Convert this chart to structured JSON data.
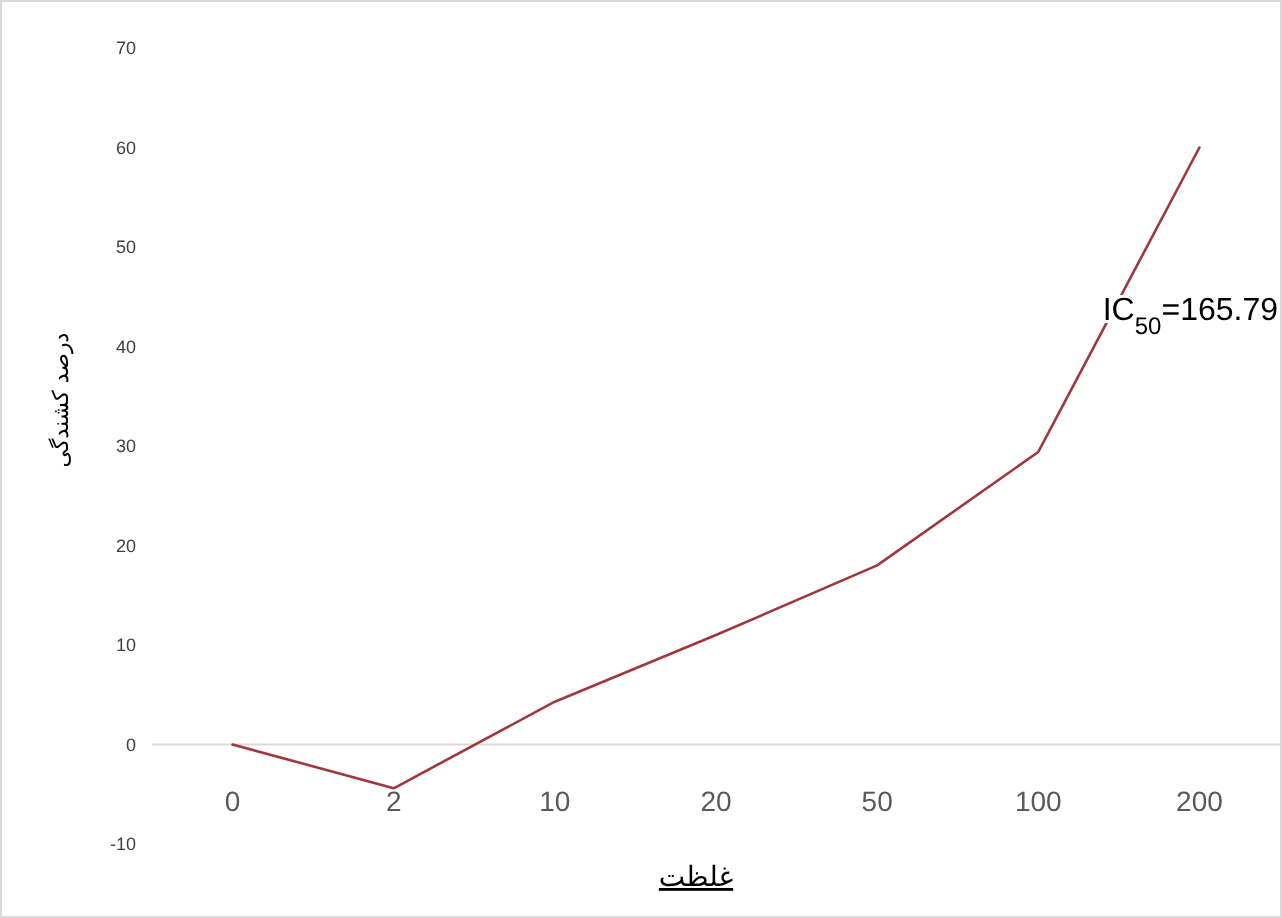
{
  "chart_data": {
    "type": "line",
    "xlabel": "غلظت",
    "ylabel": "درصد کشندگی",
    "categories": [
      "0",
      "2",
      "10",
      "20",
      "50",
      "100",
      "200"
    ],
    "series": [
      {
        "color": "#a0373c",
        "values": [
          0,
          -4.4,
          4.3,
          11,
          18,
          29.4,
          60
        ]
      }
    ],
    "ylim": [
      -10,
      70
    ],
    "yticks": [
      -10,
      0,
      10,
      20,
      30,
      40,
      50,
      60,
      70
    ],
    "annotations": [
      "IC$_{50}$=165.79"
    ],
    "grid": false,
    "marker": "none",
    "line_style": "solid"
  }
}
